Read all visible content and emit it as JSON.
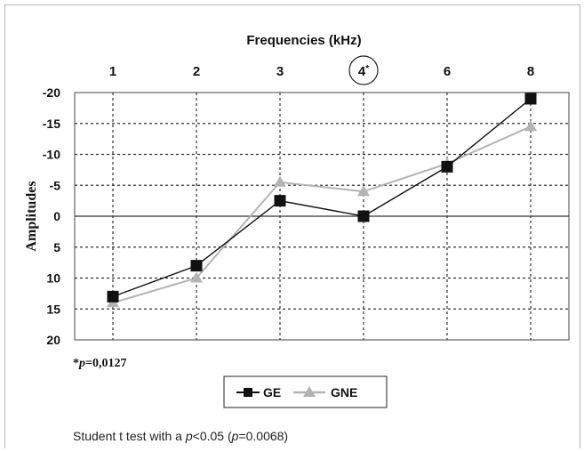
{
  "chart_data": {
    "type": "line",
    "title": "Frequencies (kHz)",
    "ylabel": "Amplitudes",
    "categories": [
      "1",
      "2",
      "3",
      "4*",
      "6",
      "8"
    ],
    "highlighted_category": "4*",
    "yticks": [
      "-20",
      "-15",
      "-10",
      "-5",
      "0",
      "5",
      "10",
      "15",
      "20"
    ],
    "ylim": [
      -20,
      20
    ],
    "y_inverted": true,
    "grid": "dashed",
    "series": [
      {
        "name": "GE",
        "marker": "square",
        "color": "#111111",
        "values": [
          13,
          8,
          -2.5,
          0,
          -8,
          -19
        ]
      },
      {
        "name": "GNE",
        "marker": "triangle",
        "color": "#b3b3b3",
        "values": [
          14,
          10,
          -5.5,
          -4,
          -8.5,
          -14.5
        ]
      }
    ],
    "legend_position": "bottom-center",
    "annotation": {
      "prefix": "*",
      "var": "p",
      "rest": "=0,0127"
    }
  },
  "caption": {
    "before": "Student t test with a ",
    "p1": "p",
    "mid": "<0.05 (",
    "p2": "p",
    "after": "=0.0068)"
  }
}
